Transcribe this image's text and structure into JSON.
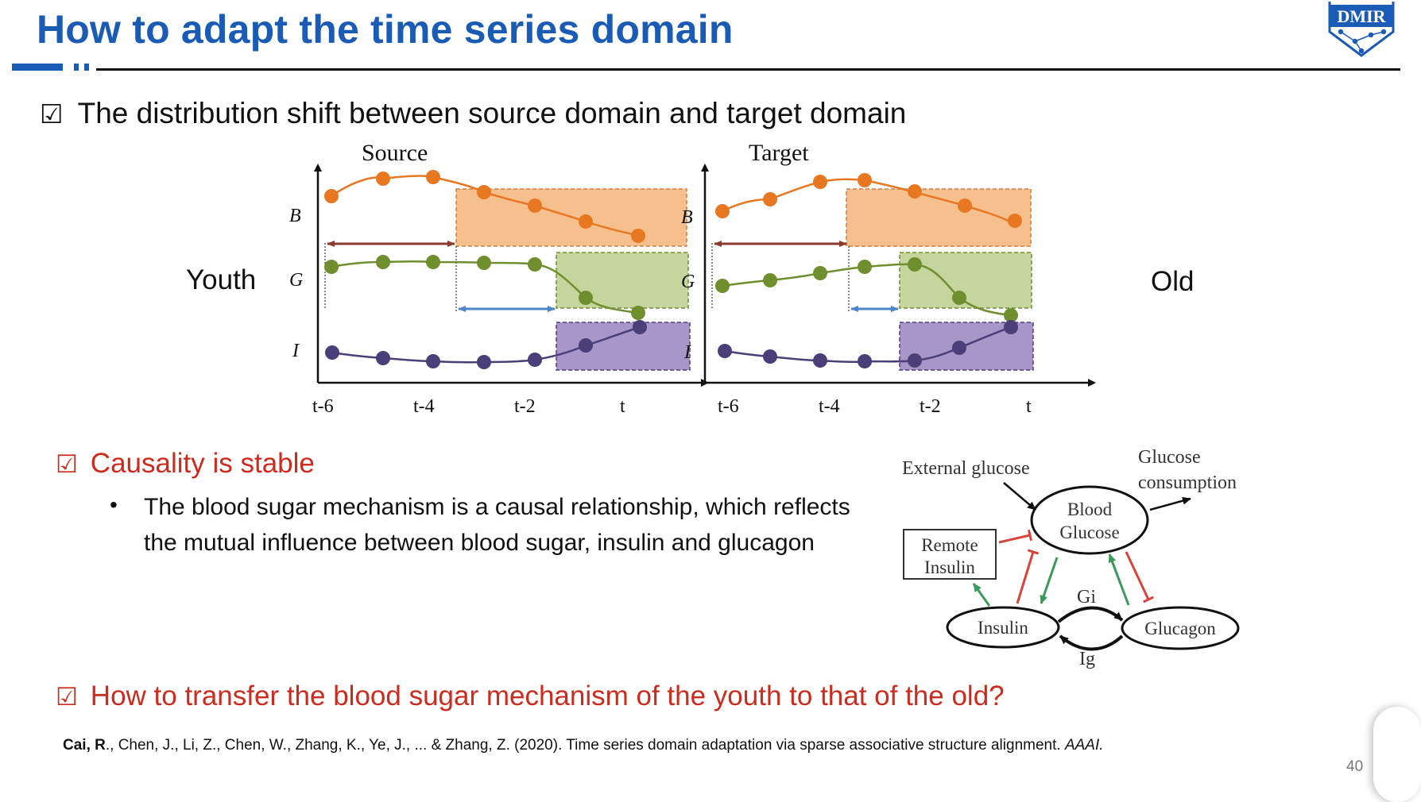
{
  "header": {
    "title": "How to adapt the time series domain",
    "logo_text": "DMIR"
  },
  "bullet1": {
    "check": "☑",
    "text": "The distribution shift between source domain and target domain"
  },
  "labels": {
    "youth": "Youth",
    "old": "Old"
  },
  "panels": [
    {
      "title": "Source",
      "series_labels": [
        "B",
        "G",
        "I"
      ],
      "x_ticks": [
        "t-6",
        "t-4",
        "t-2",
        "t"
      ]
    },
    {
      "title": "Target",
      "series_labels": [
        "B",
        "G",
        "I"
      ],
      "x_ticks": [
        "t-6",
        "t-4",
        "t-2",
        "t"
      ]
    }
  ],
  "bullet2": {
    "check": "☑",
    "text": "Causality is stable"
  },
  "sub_bullet": {
    "dot": "•",
    "text": "The blood sugar mechanism is a causal relationship, which reflects the mutual influence between blood sugar, insulin and glucagon"
  },
  "diagram": {
    "external_glucose": "External glucose",
    "glucose_consumption_1": "Glucose",
    "glucose_consumption_2": "consumption",
    "blood_glucose_1": "Blood",
    "blood_glucose_2": "Glucose",
    "remote_insulin_1": "Remote",
    "remote_insulin_2": "Insulin",
    "insulin": "Insulin",
    "glucagon": "Glucagon",
    "gi": "Gi",
    "ig": "Ig"
  },
  "bullet3": {
    "check": "☑",
    "text": "How to transfer the blood sugar mechanism of the youth to that of the old?"
  },
  "citation": {
    "author_bold": "Cai, R",
    "rest": "., Chen, J., Li, Z., Chen, W., Zhang, K., Ye, J., ... & Zhang, Z. (2020). Time series domain adaptation via sparse associative structure alignment. ",
    "venue": "AAAI."
  },
  "page_number": "40",
  "colors": {
    "title_blue": "#1a5bb5",
    "accent_red": "#cc2b1d",
    "series_B": "#e87722",
    "series_G": "#6f8f2f",
    "series_I": "#4a3f78"
  }
}
